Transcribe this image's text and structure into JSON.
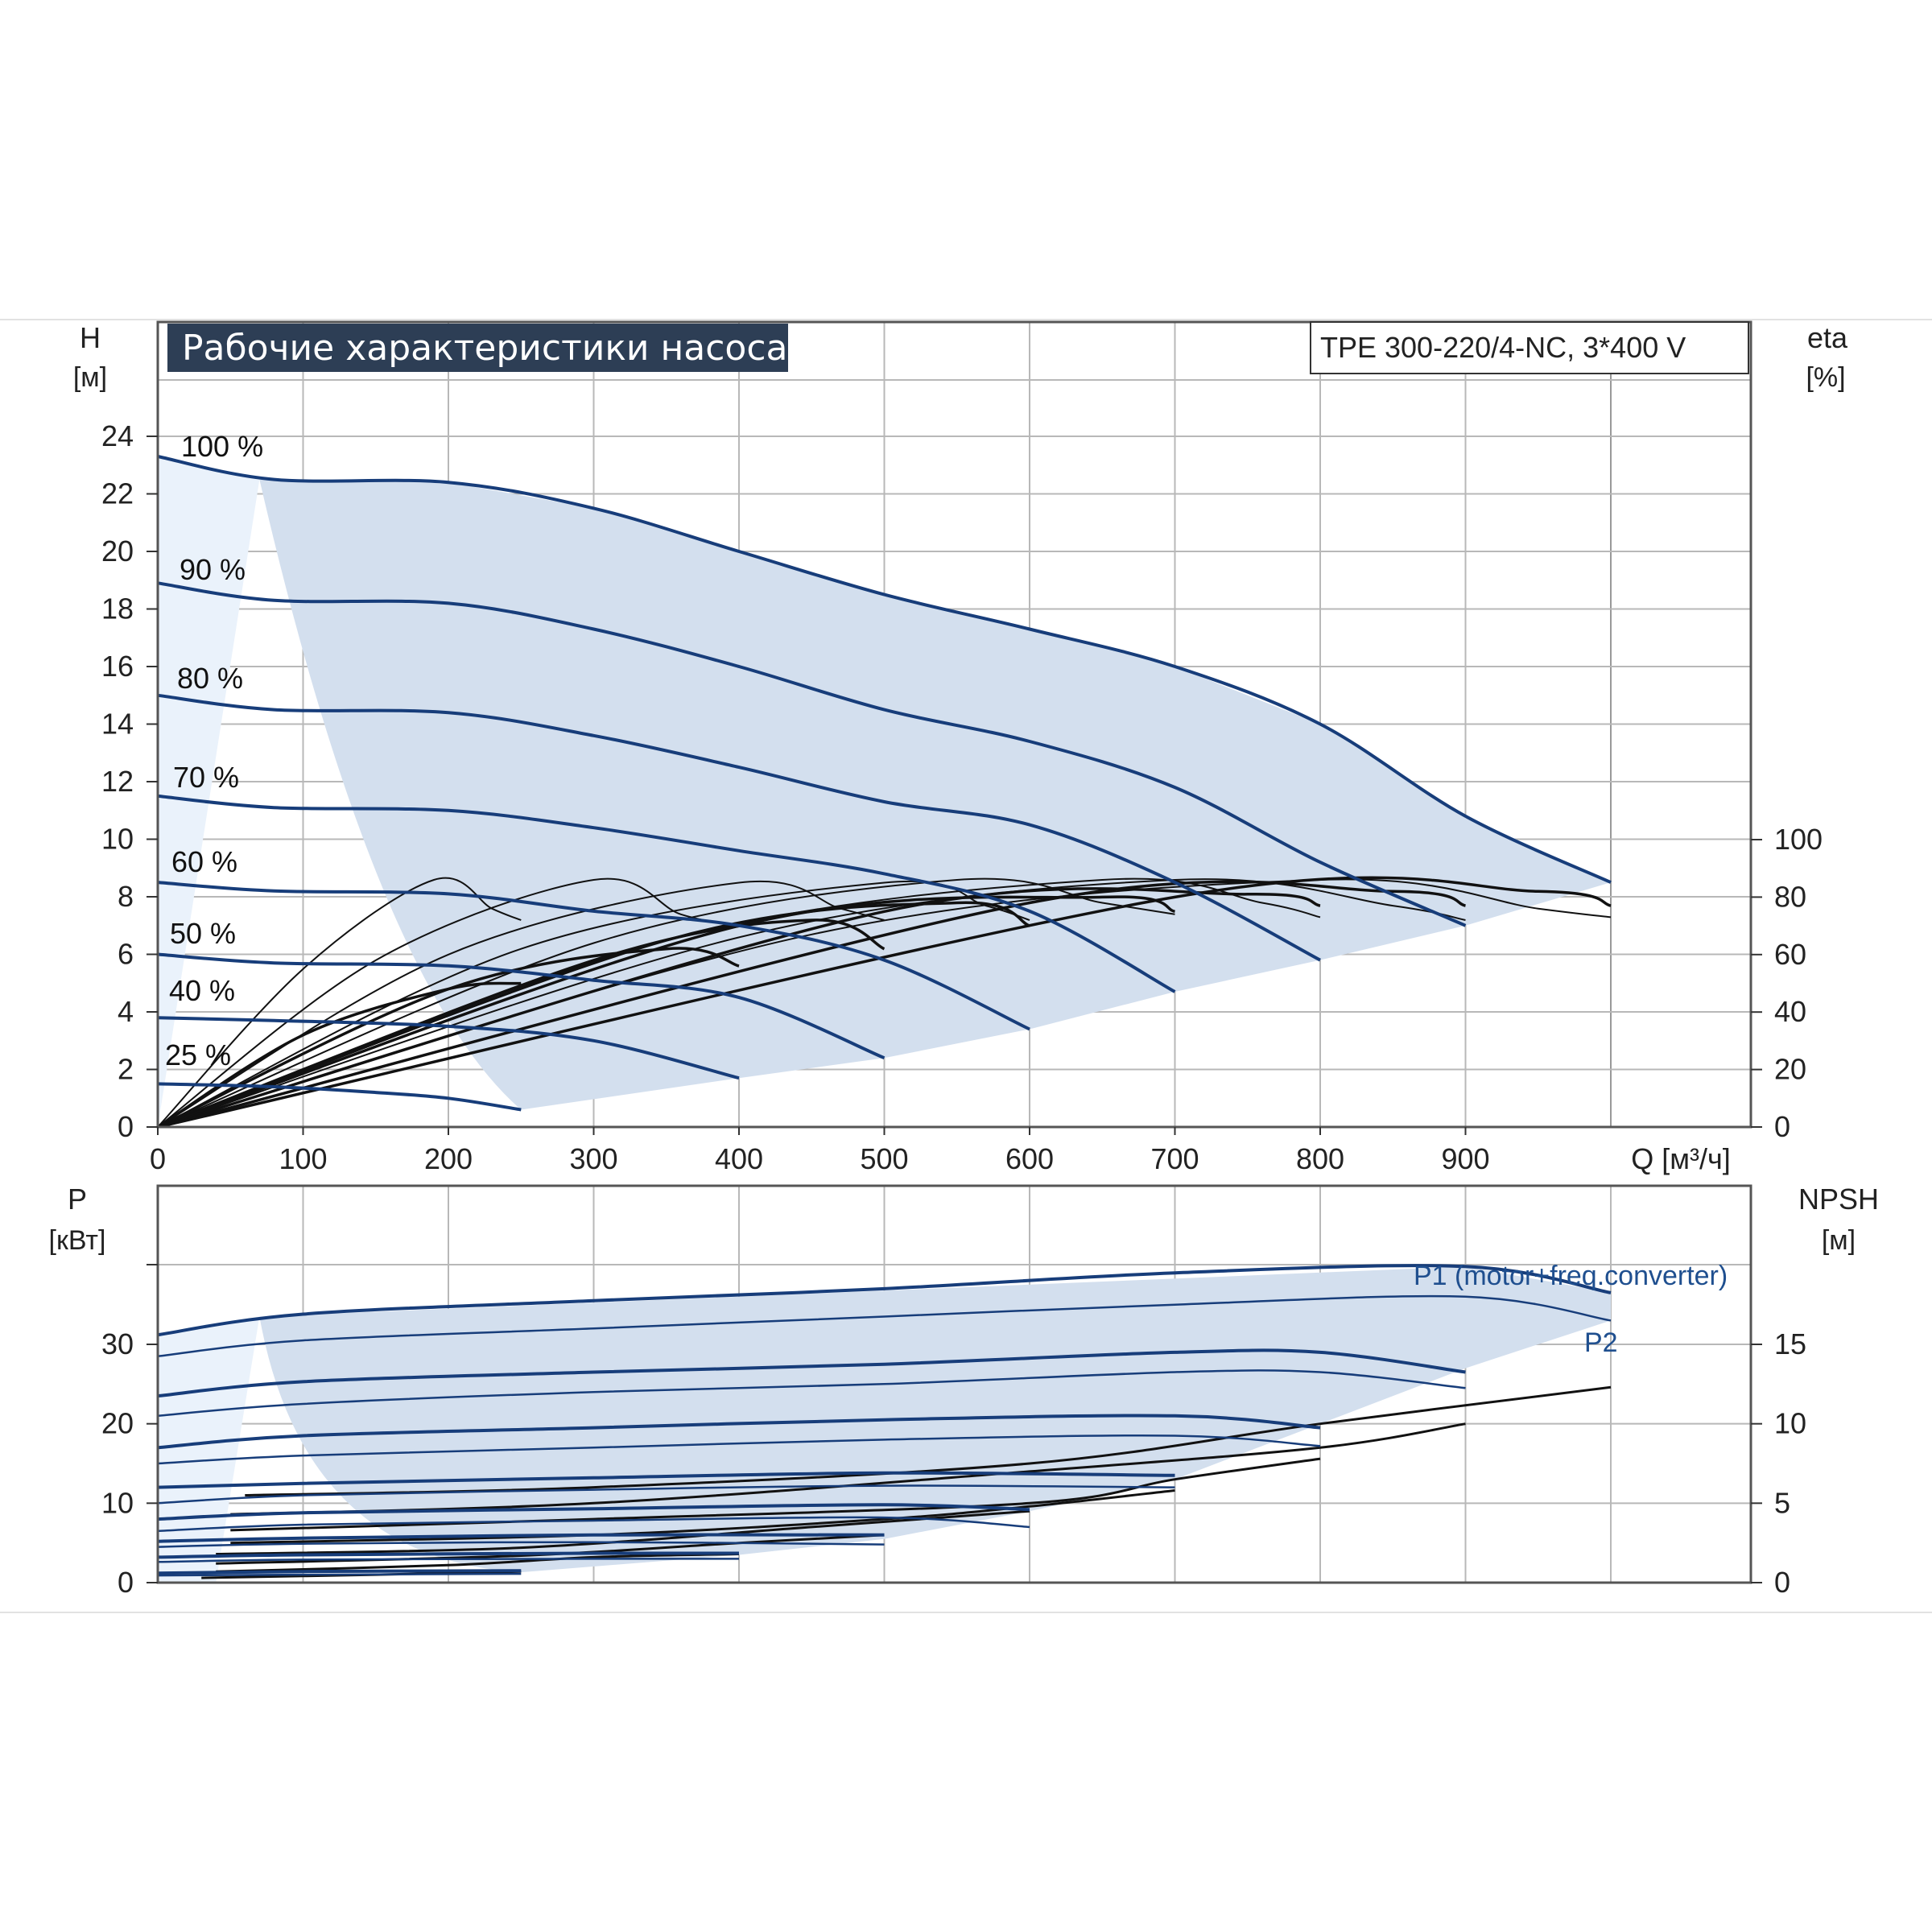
{
  "header": {
    "title": "Рабочие характеристики насоса",
    "model": "TPE 300-220/4-NC, 3*400 V"
  },
  "colors": {
    "grid": "#b8b8b8",
    "frame": "#555555",
    "region_fill": "#d3dfee",
    "region_light": "#eaf2fb",
    "head_curve": "#173d7a",
    "eff_curve": "#111111",
    "power_curve": "#173d7a",
    "npsh_curve": "#111111",
    "title_bg": "#2d3e55"
  },
  "chart_data": [
    {
      "type": "line",
      "panel": "head-efficiency",
      "ylabel": "H",
      "yunit": "[м]",
      "y2label": "eta",
      "y2unit": "[%]",
      "xlabel": "Q [м³/ч]",
      "xlim": [
        0,
        1100
      ],
      "ylim": [
        0,
        24
      ],
      "y2lim": [
        0,
        100
      ],
      "grid": true,
      "x_ticks": [
        0,
        100,
        200,
        300,
        400,
        500,
        600,
        700,
        800,
        900
      ],
      "y_ticks": [
        0,
        2,
        4,
        6,
        8,
        10,
        12,
        14,
        16,
        18,
        20,
        22,
        24
      ],
      "y2_ticks": [
        0,
        20,
        40,
        60,
        80,
        100
      ],
      "speed_labels": [
        "100 %",
        "90 %",
        "80 %",
        "70 %",
        "60 %",
        "50 %",
        "40 %",
        "25 %"
      ],
      "head_curves": [
        {
          "speed": "100 %",
          "x": [
            0,
            80,
            200,
            300,
            400,
            500,
            600,
            700,
            800,
            900,
            1000
          ],
          "y": [
            23.3,
            22.5,
            22.4,
            21.5,
            20.0,
            18.5,
            17.3,
            16.0,
            14.0,
            10.8,
            8.5
          ]
        },
        {
          "speed": "90 %",
          "x": [
            0,
            80,
            200,
            300,
            400,
            500,
            600,
            700,
            800,
            900
          ],
          "y": [
            18.9,
            18.3,
            18.2,
            17.3,
            16.0,
            14.5,
            13.4,
            11.8,
            9.2,
            7.0
          ]
        },
        {
          "speed": "80 %",
          "x": [
            0,
            80,
            200,
            300,
            400,
            500,
            600,
            700,
            800
          ],
          "y": [
            15.0,
            14.5,
            14.4,
            13.6,
            12.5,
            11.3,
            10.5,
            8.5,
            5.8
          ]
        },
        {
          "speed": "70 %",
          "x": [
            0,
            80,
            200,
            300,
            400,
            500,
            600,
            700
          ],
          "y": [
            11.5,
            11.1,
            11.0,
            10.4,
            9.6,
            8.8,
            7.5,
            4.7
          ]
        },
        {
          "speed": "60 %",
          "x": [
            0,
            80,
            200,
            300,
            400,
            500,
            600
          ],
          "y": [
            8.5,
            8.2,
            8.1,
            7.5,
            7.0,
            5.8,
            3.4
          ]
        },
        {
          "speed": "50 %",
          "x": [
            0,
            80,
            200,
            300,
            400,
            500
          ],
          "y": [
            6.0,
            5.7,
            5.6,
            5.1,
            4.5,
            2.4
          ]
        },
        {
          "speed": "40 %",
          "x": [
            0,
            80,
            200,
            300,
            400
          ],
          "y": [
            3.8,
            3.7,
            3.5,
            3.0,
            1.7
          ]
        },
        {
          "speed": "25 %",
          "x": [
            0,
            80,
            150,
            200,
            250
          ],
          "y": [
            1.5,
            1.4,
            1.2,
            1.0,
            0.6
          ]
        }
      ],
      "operating_region": {
        "x": [
          70,
          1000,
          1000,
          900,
          800,
          700,
          600,
          500,
          400,
          250
        ],
        "y": [
          22.5,
          8.5,
          8.7,
          8.0,
          6.2,
          4.6,
          3.4,
          2.4,
          1.6,
          0.5
        ]
      },
      "efficiency_curves": [
        {
          "x": [
            0,
            100,
            190,
            230,
            250
          ],
          "y": [
            0,
            55,
            86,
            76,
            72
          ]
        },
        {
          "x": [
            0,
            150,
            300,
            360,
            400
          ],
          "y": [
            0,
            58,
            86,
            74,
            70
          ]
        },
        {
          "x": [
            0,
            200,
            400,
            470,
            500
          ],
          "y": [
            0,
            60,
            85,
            76,
            72
          ]
        },
        {
          "x": [
            0,
            250,
            500,
            570,
            600
          ],
          "y": [
            0,
            62,
            85,
            77,
            72
          ]
        },
        {
          "x": [
            0,
            300,
            550,
            650,
            700
          ],
          "y": [
            0,
            64,
            86,
            78,
            74
          ]
        },
        {
          "x": [
            0,
            350,
            650,
            760,
            800
          ],
          "y": [
            0,
            65,
            86,
            78,
            73
          ]
        },
        {
          "x": [
            0,
            400,
            700,
            850,
            900
          ],
          "y": [
            0,
            66,
            86,
            77,
            72
          ]
        },
        {
          "x": [
            0,
            450,
            800,
            950,
            1000
          ],
          "y": [
            0,
            67,
            86,
            76,
            73
          ]
        },
        {
          "x": [
            0,
            100,
            200,
            250
          ],
          "y": [
            0,
            32,
            48,
            50
          ]
        },
        {
          "x": [
            0,
            200,
            350,
            400
          ],
          "y": [
            0,
            48,
            62,
            56
          ]
        },
        {
          "x": [
            0,
            300,
            450,
            500
          ],
          "y": [
            0,
            58,
            72,
            62
          ]
        },
        {
          "x": [
            0,
            350,
            550,
            600
          ],
          "y": [
            0,
            65,
            78,
            70
          ]
        },
        {
          "x": [
            0,
            400,
            650,
            700
          ],
          "y": [
            0,
            70,
            80,
            75
          ]
        },
        {
          "x": [
            0,
            500,
            750,
            800
          ],
          "y": [
            0,
            75,
            81,
            77
          ]
        },
        {
          "x": [
            0,
            600,
            850,
            900
          ],
          "y": [
            0,
            78,
            82,
            77
          ]
        },
        {
          "x": [
            0,
            700,
            950,
            1000
          ],
          "y": [
            0,
            80,
            82,
            77
          ]
        }
      ]
    },
    {
      "type": "line",
      "panel": "power-npsh",
      "ylabel": "P",
      "yunit": "[кВт]",
      "y2label": "NPSH",
      "y2unit": "[м]",
      "xlim": [
        0,
        1100
      ],
      "ylim": [
        0,
        40
      ],
      "y2lim": [
        0,
        20
      ],
      "grid": true,
      "y_ticks": [
        0,
        10,
        20,
        30
      ],
      "y2_ticks": [
        0,
        5,
        10,
        15
      ],
      "series_labels": [
        "P1 (motor+freq.converter)",
        "P2"
      ],
      "operating_region": {
        "x": [
          70,
          900,
          1000,
          1000,
          900,
          700,
          600,
          500,
          400,
          250
        ],
        "y": [
          33.5,
          39.8,
          36.5,
          33.0,
          27.0,
          13.0,
          9.0,
          5.5,
          3.5,
          1.3
        ]
      },
      "power_curves": [
        {
          "name": "P1 (motor+freq.converter)",
          "x": [
            0,
            100,
            300,
            500,
            700,
            900,
            1000
          ],
          "y": [
            31.2,
            33.8,
            35.5,
            37.0,
            39.0,
            39.8,
            36.5
          ]
        },
        {
          "name": "P2",
          "x": [
            0,
            100,
            300,
            500,
            700,
            900,
            1000
          ],
          "y": [
            28.5,
            30.5,
            32.0,
            33.5,
            35.0,
            36.0,
            33.0
          ]
        },
        {
          "x": [
            0,
            100,
            300,
            500,
            700,
            800,
            900
          ],
          "y": [
            23.5,
            25.3,
            26.5,
            27.5,
            29.0,
            29.0,
            26.5
          ]
        },
        {
          "x": [
            0,
            100,
            300,
            500,
            700,
            800,
            900
          ],
          "y": [
            21.0,
            22.5,
            24.0,
            25.0,
            26.5,
            26.5,
            24.5
          ]
        },
        {
          "x": [
            0,
            100,
            300,
            500,
            700,
            800
          ],
          "y": [
            17.0,
            18.5,
            19.5,
            20.5,
            21.0,
            19.5
          ]
        },
        {
          "x": [
            0,
            100,
            300,
            500,
            700,
            800
          ],
          "y": [
            15.0,
            16.0,
            17.0,
            18.0,
            18.5,
            17.2
          ]
        },
        {
          "x": [
            0,
            100,
            300,
            500,
            700
          ],
          "y": [
            12.0,
            12.5,
            13.2,
            13.8,
            13.5
          ]
        },
        {
          "x": [
            0,
            100,
            300,
            500,
            700
          ],
          "y": [
            10.0,
            11.0,
            11.7,
            12.2,
            12.0
          ]
        },
        {
          "x": [
            0,
            100,
            300,
            500,
            600
          ],
          "y": [
            8.0,
            8.8,
            9.3,
            9.8,
            9.2
          ]
        },
        {
          "x": [
            0,
            100,
            300,
            500,
            600
          ],
          "y": [
            6.5,
            7.3,
            7.8,
            8.2,
            7.0
          ]
        },
        {
          "x": [
            0,
            100,
            300,
            500
          ],
          "y": [
            5.2,
            5.6,
            6.0,
            6.0
          ]
        },
        {
          "x": [
            0,
            100,
            300,
            500
          ],
          "y": [
            4.5,
            4.9,
            5.1,
            4.8
          ]
        },
        {
          "x": [
            0,
            100,
            300,
            400
          ],
          "y": [
            3.2,
            3.5,
            3.7,
            3.7
          ]
        },
        {
          "x": [
            0,
            100,
            300,
            400
          ],
          "y": [
            2.6,
            2.9,
            3.0,
            3.0
          ]
        },
        {
          "x": [
            0,
            100,
            250
          ],
          "y": [
            1.2,
            1.4,
            1.5
          ]
        },
        {
          "x": [
            0,
            100,
            250
          ],
          "y": [
            0.9,
            1.0,
            1.1
          ]
        }
      ],
      "npsh_curves": [
        {
          "x": [
            60,
            300,
            600,
            800,
            1000
          ],
          "y": [
            5.5,
            6.0,
            7.5,
            10.0,
            12.3
          ]
        },
        {
          "x": [
            50,
            300,
            600,
            800,
            900
          ],
          "y": [
            4.3,
            5.0,
            7.0,
            8.5,
            10.0
          ]
        },
        {
          "x": [
            50,
            300,
            600,
            700,
            800
          ],
          "y": [
            3.3,
            4.0,
            5.0,
            6.5,
            7.8
          ]
        },
        {
          "x": [
            50,
            300,
            500,
            600,
            700
          ],
          "y": [
            2.5,
            3.0,
            4.0,
            4.8,
            5.8
          ]
        },
        {
          "x": [
            40,
            250,
            450,
            600
          ],
          "y": [
            1.8,
            2.2,
            3.5,
            4.5
          ]
        },
        {
          "x": [
            40,
            250,
            400,
            500
          ],
          "y": [
            1.2,
            1.7,
            2.5,
            3.0
          ]
        },
        {
          "x": [
            40,
            200,
            300,
            400
          ],
          "y": [
            0.7,
            1.1,
            1.6,
            1.8
          ]
        },
        {
          "x": [
            30,
            150,
            250
          ],
          "y": [
            0.3,
            0.5,
            0.7
          ]
        }
      ]
    }
  ]
}
